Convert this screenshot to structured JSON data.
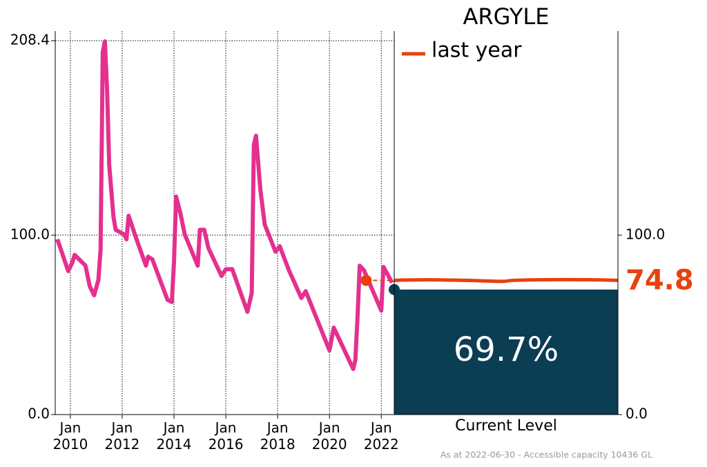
{
  "chart_data": [
    {
      "type": "line",
      "x": [
        "2009-07",
        "2009-12",
        "2010-02",
        "2010-03",
        "2010-08",
        "2010-10",
        "2010-12",
        "2011-02",
        "2011-03",
        "2011-04",
        "2011-05",
        "2011-06",
        "2011-07",
        "2011-09",
        "2011-10",
        "2012-02",
        "2012-03",
        "2012-04",
        "2012-08",
        "2012-12",
        "2013-01",
        "2013-03",
        "2013-10",
        "2013-12",
        "2014-01",
        "2014-02",
        "2014-04",
        "2014-06",
        "2014-12",
        "2015-01",
        "2015-03",
        "2015-05",
        "2015-11",
        "2016-01",
        "2016-04",
        "2016-11",
        "2017-01",
        "2017-02",
        "2017-03",
        "2017-05",
        "2017-07",
        "2017-12",
        "2018-02",
        "2018-06",
        "2018-12",
        "2019-02",
        "2020-01",
        "2020-03",
        "2020-12",
        "2021-01",
        "2021-02",
        "2021-03",
        "2021-05",
        "2022-01",
        "2022-02",
        "2022-06"
      ],
      "series": [
        {
          "color": "#e4308f",
          "values": [
            97.7,
            80,
            85,
            89,
            83,
            71.5,
            66.5,
            75,
            92,
            202,
            208,
            181,
            139,
            110,
            103,
            100.4,
            97.7,
            110.8,
            96.5,
            83,
            88,
            86.5,
            64,
            62.7,
            85,
            121.5,
            112,
            100.4,
            83,
            103,
            103,
            92.7,
            77.3,
            81,
            81,
            57.3,
            67.7,
            150.4,
            155.4,
            125.4,
            106,
            90.8,
            93.8,
            81,
            65,
            68.8,
            35.8,
            48.5,
            25.4,
            30.4,
            54,
            83,
            80.4,
            58,
            82.3,
            73.5
          ]
        }
      ],
      "xlim": [
        "2009-06",
        "2022-07"
      ],
      "xticks": [
        {
          "value": "2010-01",
          "label": "Jan 2010"
        },
        {
          "value": "2012-01",
          "label": "Jan 2012"
        },
        {
          "value": "2014-01",
          "label": "Jan 2014"
        },
        {
          "value": "2016-01",
          "label": "Jan 2016"
        },
        {
          "value": "2018-01",
          "label": "Jan 2018"
        },
        {
          "value": "2020-01",
          "label": "Jan 2020"
        },
        {
          "value": "2022-01",
          "label": "Jan 2022"
        }
      ],
      "ylim": [
        0,
        208.4
      ],
      "yticks": [
        {
          "value": 0,
          "label": "0.0"
        },
        {
          "value": 100,
          "label": "100.0"
        },
        208.4
      ],
      "grid": true,
      "last_year_x": "2021-06"
    },
    {
      "type": "bar",
      "title": "ARGYLE",
      "categories": [
        "Current Level"
      ],
      "values": [
        69.7
      ],
      "value_labels": [
        "69.7%"
      ],
      "color": "#0b3d53",
      "ylim": [
        0,
        208.4
      ],
      "yticks": [
        {
          "value": 0,
          "label": "0.0"
        },
        {
          "value": 100,
          "label": "100.0"
        }
      ],
      "reference": {
        "name": "last year",
        "value": 74.8,
        "color": "#e8410c"
      },
      "footnote": "As at 2022-06-30 - Accessible capacity 10436 GL"
    }
  ]
}
